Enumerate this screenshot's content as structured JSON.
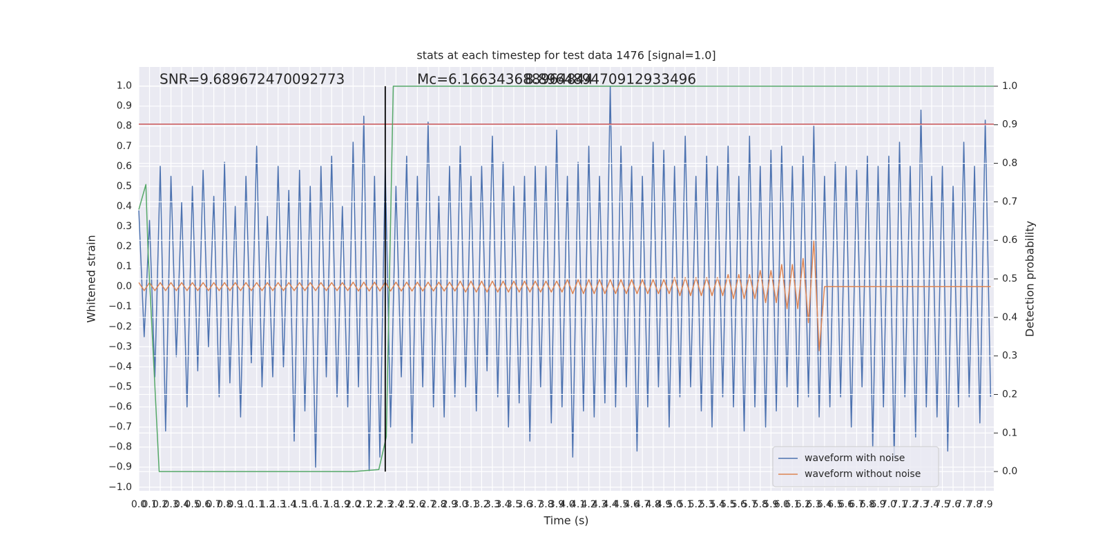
{
  "chart_data": {
    "type": "line",
    "title": "stats at each timestep for test data 1476 [signal=1.0]",
    "xlabel": "Time (s)",
    "ylabel": "Whitened strain",
    "y2label": "Detection probability",
    "annotations": [
      "SNR=9.689672470092773",
      "Mc=6.166343688964844",
      "8.896489470912933496"
    ],
    "xlim": [
      0,
      7.98
    ],
    "ylim": [
      -1.018,
      1.095
    ],
    "y2lim": [
      -0.05,
      1.05
    ],
    "grid": true,
    "legend": "lower right",
    "xticks": [
      {
        "value": 0,
        "label": "0.0"
      },
      0.1,
      0.2,
      0.3,
      0.4,
      0.5,
      0.6,
      0.7,
      0.8,
      0.9,
      {
        "value": 1,
        "label": "1.0"
      },
      1.1,
      1.2,
      1.3,
      1.4,
      1.5,
      1.6,
      1.7,
      1.8,
      1.9,
      {
        "value": 2,
        "label": "2.0"
      },
      2.1,
      2.2,
      2.3,
      2.4,
      2.5,
      2.6,
      2.7,
      2.8,
      2.9,
      {
        "value": 3,
        "label": "3.0"
      },
      3.1,
      3.2,
      3.3,
      3.4,
      3.5,
      3.6,
      3.7,
      3.8,
      3.9,
      {
        "value": 4,
        "label": "4.0"
      },
      4.1,
      4.2,
      4.3,
      4.4,
      4.5,
      4.6,
      4.7,
      4.8,
      4.9,
      {
        "value": 5,
        "label": "5.0"
      },
      5.1,
      5.2,
      5.3,
      5.4,
      5.5,
      5.6,
      5.7,
      5.8,
      5.9,
      {
        "value": 6,
        "label": "6.0"
      },
      6.1,
      6.2,
      6.3,
      6.4,
      6.5,
      6.6,
      6.7,
      6.8,
      6.9,
      {
        "value": 7,
        "label": "7.0"
      },
      7.1,
      7.2,
      7.3,
      7.4,
      7.5,
      7.6,
      7.7,
      7.8,
      7.9
    ],
    "yticks": [
      {
        "value": -1,
        "label": "−1.0"
      },
      {
        "value": -0.9,
        "label": "−0.9"
      },
      {
        "value": -0.8,
        "label": "−0.8"
      },
      {
        "value": -0.7,
        "label": "−0.7"
      },
      {
        "value": -0.6,
        "label": "−0.6"
      },
      {
        "value": -0.5,
        "label": "−0.5"
      },
      {
        "value": -0.4,
        "label": "−0.4"
      },
      {
        "value": -0.3,
        "label": "−0.3"
      },
      {
        "value": -0.2,
        "label": "−0.2"
      },
      {
        "value": -0.1,
        "label": "−0.1"
      },
      {
        "value": 0,
        "label": "0.0"
      },
      0.1,
      0.2,
      0.3,
      0.4,
      0.5,
      0.6,
      0.7,
      0.8,
      0.9,
      {
        "value": 1,
        "label": "1.0"
      }
    ],
    "y2ticks": [
      {
        "value": 0,
        "label": "0.0"
      },
      0.1,
      0.2,
      0.3,
      0.4,
      0.5,
      0.6,
      0.7,
      0.8,
      0.9,
      {
        "value": 1,
        "label": "1.0"
      }
    ],
    "x": [
      0,
      0.05,
      0.1,
      0.15,
      0.2,
      0.25,
      0.3,
      0.35,
      0.4,
      0.45,
      0.5,
      0.55,
      0.6,
      0.65,
      0.7,
      0.75,
      0.8,
      0.85,
      0.9,
      0.95,
      1,
      1.05,
      1.1,
      1.15,
      1.2,
      1.25,
      1.3,
      1.35,
      1.4,
      1.45,
      1.5,
      1.55,
      1.6,
      1.65,
      1.7,
      1.75,
      1.8,
      1.85,
      1.9,
      1.95,
      2,
      2.05,
      2.1,
      2.15,
      2.2,
      2.25,
      2.3,
      2.35,
      2.4,
      2.45,
      2.5,
      2.55,
      2.6,
      2.65,
      2.7,
      2.75,
      2.8,
      2.85,
      2.9,
      2.95,
      3,
      3.05,
      3.1,
      3.15,
      3.2,
      3.25,
      3.3,
      3.35,
      3.4,
      3.45,
      3.5,
      3.55,
      3.6,
      3.65,
      3.7,
      3.75,
      3.8,
      3.85,
      3.9,
      3.95,
      4,
      4.05,
      4.1,
      4.15,
      4.2,
      4.25,
      4.3,
      4.35,
      4.4,
      4.45,
      4.5,
      4.55,
      4.6,
      4.65,
      4.7,
      4.75,
      4.8,
      4.85,
      4.9,
      4.95,
      5,
      5.05,
      5.1,
      5.15,
      5.2,
      5.25,
      5.3,
      5.35,
      5.4,
      5.45,
      5.5,
      5.55,
      5.6,
      5.65,
      5.7,
      5.75,
      5.8,
      5.85,
      5.9,
      5.95,
      6,
      6.05,
      6.1,
      6.15,
      6.2,
      6.25,
      6.3,
      6.35,
      6.4,
      6.45,
      6.5,
      6.55,
      6.6,
      6.65,
      6.7,
      6.75,
      6.8,
      6.85,
      6.9,
      6.95,
      7,
      7.05,
      7.1,
      7.15,
      7.2,
      7.25,
      7.3,
      7.35,
      7.4,
      7.45,
      7.5,
      7.55,
      7.6,
      7.65,
      7.7,
      7.75,
      7.8,
      7.85,
      7.9,
      7.95
    ],
    "series": [
      {
        "name": "waveform with noise",
        "color": "#4c72b0",
        "values": [
          0.38,
          -0.25,
          0.33,
          -0.45,
          0.6,
          -0.72,
          0.55,
          -0.35,
          0.42,
          -0.6,
          0.5,
          -0.42,
          0.58,
          -0.3,
          0.45,
          -0.55,
          0.62,
          -0.48,
          0.4,
          -0.65,
          0.55,
          -0.38,
          0.7,
          -0.5,
          0.35,
          -0.45,
          0.6,
          -0.4,
          0.48,
          -0.77,
          0.58,
          -0.62,
          0.5,
          -0.9,
          0.6,
          -0.45,
          0.65,
          -0.55,
          0.4,
          -0.6,
          0.72,
          -0.5,
          0.85,
          -0.92,
          0.55,
          -0.85,
          0.6,
          -0.7,
          0.5,
          -0.45,
          0.65,
          -0.78,
          0.55,
          -0.5,
          0.82,
          -0.6,
          0.45,
          -0.65,
          0.6,
          -0.55,
          0.7,
          -0.5,
          0.55,
          -0.62,
          0.6,
          -0.42,
          0.75,
          -0.55,
          0.62,
          -0.7,
          0.5,
          -0.58,
          0.55,
          -0.77,
          0.6,
          -0.5,
          0.6,
          -0.68,
          0.78,
          -0.6,
          0.55,
          -0.85,
          0.62,
          -0.62,
          0.7,
          -0.65,
          0.55,
          -0.58,
          1.0,
          -0.6,
          0.7,
          -0.5,
          0.6,
          -0.82,
          0.55,
          -0.6,
          0.72,
          -0.5,
          0.68,
          -0.7,
          0.6,
          -0.55,
          0.75,
          -0.5,
          0.55,
          -0.62,
          0.65,
          -0.7,
          0.6,
          -0.55,
          0.7,
          -0.6,
          0.55,
          -0.72,
          0.75,
          -0.6,
          0.6,
          -0.7,
          0.68,
          -0.62,
          0.7,
          -0.5,
          0.6,
          -0.6,
          0.65,
          -0.55,
          0.8,
          -0.65,
          0.55,
          -0.6,
          0.62,
          -0.55,
          0.6,
          -0.7,
          0.58,
          -0.5,
          0.65,
          -0.8,
          0.6,
          -0.6,
          0.65,
          -0.85,
          0.72,
          -0.55,
          0.6,
          -0.75,
          0.88,
          -0.6,
          0.55,
          -0.65,
          0.6,
          -0.82,
          0.5,
          -0.6,
          0.72,
          -0.55,
          0.6,
          -0.68,
          0.83,
          -0.55
        ]
      },
      {
        "name": "waveform without noise",
        "color": "#dd8452",
        "values": [
          0.02,
          -0.02,
          0.02,
          -0.02,
          0.02,
          -0.02,
          0.02,
          -0.02,
          0.02,
          -0.02,
          0.02,
          -0.02,
          0.02,
          -0.02,
          0.02,
          -0.02,
          0.02,
          -0.02,
          0.02,
          -0.02,
          0.02,
          -0.02,
          0.02,
          -0.02,
          0.02,
          -0.02,
          0.02,
          -0.02,
          0.02,
          -0.02,
          0.02,
          -0.02,
          0.02,
          -0.02,
          0.02,
          -0.02,
          0.02,
          -0.02,
          0.02,
          -0.02,
          0.022,
          -0.022,
          0.022,
          -0.022,
          0.022,
          -0.022,
          0.022,
          -0.022,
          0.022,
          -0.022,
          0.022,
          -0.022,
          0.022,
          -0.022,
          0.022,
          -0.022,
          0.022,
          -0.022,
          0.022,
          -0.022,
          0.027,
          -0.027,
          0.027,
          -0.027,
          0.027,
          -0.027,
          0.027,
          -0.027,
          0.027,
          -0.027,
          0.027,
          -0.027,
          0.027,
          -0.027,
          0.027,
          -0.027,
          0.027,
          -0.027,
          0.027,
          -0.027,
          0.035,
          -0.035,
          0.035,
          -0.035,
          0.035,
          -0.035,
          0.035,
          -0.035,
          0.035,
          -0.035,
          0.035,
          -0.035,
          0.035,
          -0.035,
          0.035,
          -0.035,
          0.035,
          -0.035,
          0.035,
          -0.035,
          0.045,
          -0.045,
          0.045,
          -0.045,
          0.045,
          -0.045,
          0.045,
          -0.045,
          0.045,
          -0.045,
          0.06,
          -0.06,
          0.06,
          -0.06,
          0.06,
          -0.06,
          0.08,
          -0.08,
          0.08,
          -0.08,
          0.11,
          -0.11,
          0.11,
          -0.11,
          0.14,
          -0.18,
          0.23,
          -0.32,
          0,
          0,
          0,
          0,
          0,
          0,
          0,
          0,
          0,
          0,
          0,
          0,
          0,
          0,
          0,
          0,
          0,
          0,
          0,
          0,
          0,
          0,
          0,
          0,
          0,
          0,
          0,
          0,
          0,
          0,
          0,
          0
        ]
      },
      {
        "color": "#55a868",
        "axis": "y2",
        "x": [
          0,
          0.066,
          0.085,
          0.19,
          0.5,
          1,
          1.5,
          2,
          2.24,
          2.31,
          2.375,
          3,
          4,
          5,
          6,
          7,
          7.98
        ],
        "values": [
          0.68,
          0.745,
          0.58,
          0,
          0,
          0,
          0,
          0,
          0.005,
          0.09,
          1,
          1,
          1,
          1,
          1,
          1,
          1
        ]
      }
    ],
    "hline": {
      "y": 0.81,
      "color": "#c44e52"
    },
    "vline": {
      "x": 2.3,
      "ymin": 0,
      "ymax": 1,
      "axis": "y2",
      "color": "#000000"
    }
  }
}
